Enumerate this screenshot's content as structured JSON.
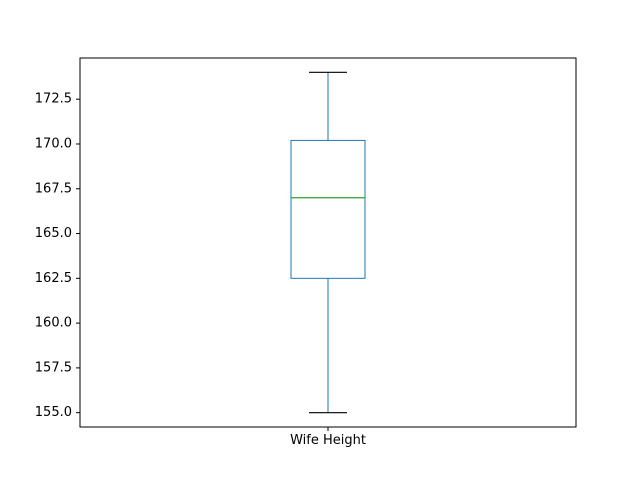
{
  "chart_data": {
    "type": "box",
    "categories": [
      "Wife Height"
    ],
    "boxes": [
      {
        "name": "Wife Height",
        "whisker_low": 155.0,
        "q1": 162.5,
        "median": 167.0,
        "q3": 170.2,
        "whisker_high": 174.0
      }
    ],
    "ylim": [
      154.2,
      174.8
    ],
    "yticks": [
      155.0,
      157.5,
      160.0,
      162.5,
      165.0,
      167.5,
      170.0,
      172.5
    ],
    "ytick_labels": [
      "155.0",
      "157.5",
      "160.0",
      "162.5",
      "165.0",
      "167.5",
      "170.0",
      "172.5"
    ],
    "title": "",
    "xlabel": "",
    "ylabel": "",
    "grid": false,
    "colors": {
      "box": "#1f77b4",
      "median": "#2ca02c",
      "caps": "#000000",
      "axes": "#000000"
    }
  }
}
